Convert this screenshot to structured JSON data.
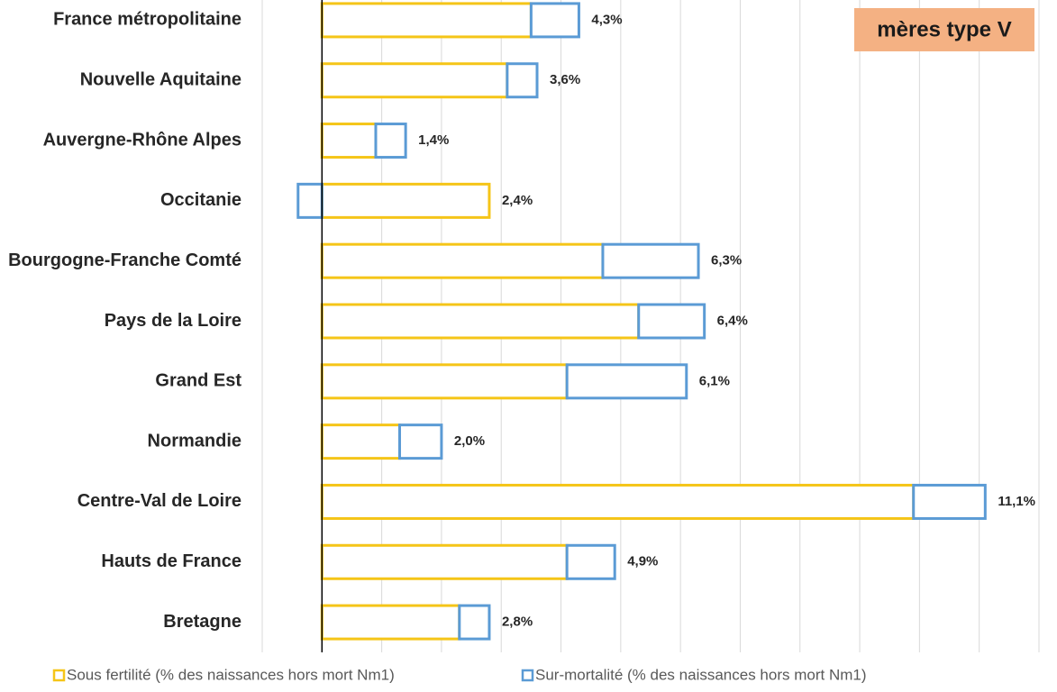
{
  "chart_data": {
    "type": "stacked_barh",
    "categories": [
      "France métropolitaine",
      "Nouvelle Aquitaine",
      "Auvergne-Rhône Alpes",
      "Occitanie",
      "Bourgogne-Franche Comté",
      "Pays de la Loire",
      "Grand Est",
      "Normandie",
      "Centre-Val de Loire",
      "Hauts de France",
      "Bretagne"
    ],
    "series": [
      {
        "name": "Sous fertilité (% des naissances hors mort Nm1)",
        "color": "#f5c518",
        "values": [
          3.5,
          3.1,
          0.9,
          2.8,
          4.7,
          5.3,
          4.1,
          1.3,
          9.9,
          4.1,
          2.3
        ]
      },
      {
        "name": "Sur-mortalité (% des naissances hors mort Nm1)",
        "color": "#5b9bd5",
        "values": [
          0.8,
          0.5,
          0.5,
          -0.4,
          1.6,
          1.1,
          2.0,
          0.7,
          1.2,
          0.8,
          0.5
        ]
      }
    ],
    "totals": {
      "values": [
        4.3,
        3.6,
        1.4,
        2.4,
        6.3,
        6.4,
        6.1,
        2.0,
        11.1,
        4.9,
        2.8
      ],
      "value_labels": [
        "4,3%",
        "3,6%",
        "1,4%",
        "2,4%",
        "6,3%",
        "6,4%",
        "6,1%",
        "2,0%",
        "11,1%",
        "4,9%",
        "2,8%"
      ]
    },
    "annotation": "mères type V",
    "xlim": [
      -1,
      12
    ],
    "xticks": [
      -1,
      0,
      1,
      2,
      3,
      4,
      5,
      6,
      7,
      8,
      9,
      10,
      11,
      12
    ],
    "grid": true
  }
}
